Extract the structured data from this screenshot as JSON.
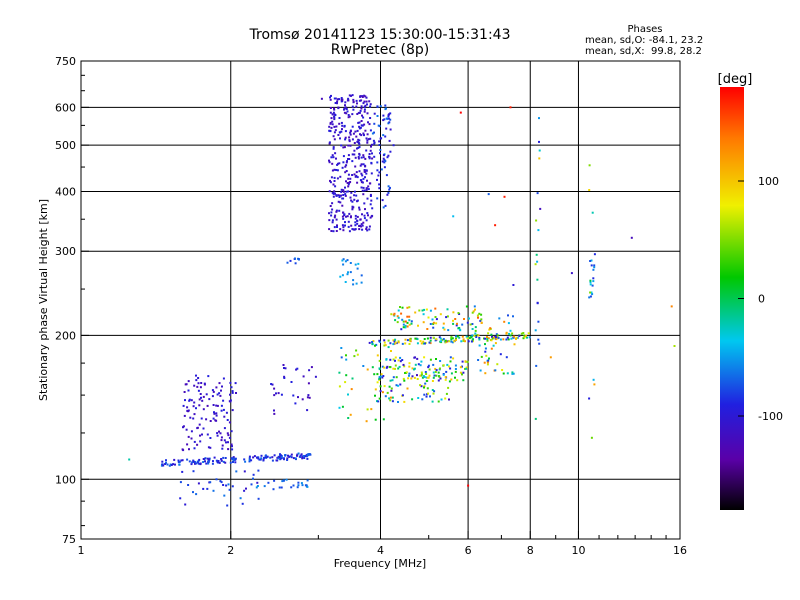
{
  "chart_data": {
    "type": "scatter",
    "title": "Tromsø 20141123 15:30:00-15:31:43",
    "subtitle": "RwPretec (8p)",
    "phases_box": {
      "heading": "Phases",
      "line1": "mean, sd,O: -84.1, 23.2",
      "line2": "mean, sd,X:  99.8, 28.2"
    },
    "xlabel": "Frequency [MHz]",
    "ylabel": "Stationary phase Virtual Height [km]",
    "x_scale": "log",
    "y_scale": "log",
    "xlim": [
      1,
      16
    ],
    "ylim": [
      75,
      750
    ],
    "x_ticks": [
      1,
      2,
      4,
      6,
      8,
      10,
      16
    ],
    "x_tick_labels": [
      "1",
      "2",
      "4",
      "6",
      "8",
      "10",
      "16"
    ],
    "y_ticks": [
      75,
      100,
      200,
      300,
      400,
      500,
      600,
      750
    ],
    "y_tick_labels": [
      "75",
      "100",
      "200",
      "300",
      "400",
      "500",
      "600",
      "750"
    ],
    "grid_x": [
      2,
      4,
      6,
      8,
      10
    ],
    "grid_y": [
      100,
      200,
      300,
      400,
      500,
      600
    ],
    "grid": true,
    "colorbar": {
      "label": "[deg]",
      "range": [
        -180,
        180
      ],
      "ticks": [
        100,
        0,
        -100
      ],
      "tick_labels": [
        "100",
        "0",
        "-100"
      ]
    },
    "clusters": [
      {
        "x": [
          1.45,
          2.9
        ],
        "y": [
          108,
          112
        ],
        "n": 170,
        "phase": [
          -110,
          -60
        ],
        "line": true
      },
      {
        "x": [
          1.6,
          2.05
        ],
        "y": [
          115,
          165
        ],
        "n": 130,
        "phase": [
          -125,
          -90
        ]
      },
      {
        "x": [
          1.55,
          2.3
        ],
        "y": [
          88,
          105
        ],
        "n": 35,
        "phase": [
          -110,
          -60
        ]
      },
      {
        "x": [
          2.2,
          2.9
        ],
        "y": [
          95,
          100
        ],
        "n": 25,
        "phase": [
          -80,
          -50
        ]
      },
      {
        "x": [
          2.4,
          3.0
        ],
        "y": [
          135,
          175
        ],
        "n": 30,
        "phase": [
          -125,
          -90
        ]
      },
      {
        "x": [
          3.15,
          3.85
        ],
        "y": [
          330,
          640
        ],
        "n": 420,
        "phase": [
          -125,
          -90
        ]
      },
      {
        "x": [
          3.85,
          4.2
        ],
        "y": [
          370,
          610
        ],
        "n": 70,
        "phase": [
          -110,
          -60
        ]
      },
      {
        "x": [
          3.3,
          3.7
        ],
        "y": [
          255,
          290
        ],
        "n": 20,
        "phase": [
          -70,
          -40
        ]
      },
      {
        "x": [
          2.6,
          2.75
        ],
        "y": [
          282,
          290
        ],
        "n": 8,
        "phase": [
          -90,
          -60
        ]
      },
      {
        "x": [
          3.8,
          8.0
        ],
        "y": [
          192,
          200
        ],
        "n": 150,
        "phase": [
          -110,
          130
        ],
        "line": true
      },
      {
        "x": [
          4.2,
          6.5
        ],
        "y": [
          205,
          230
        ],
        "n": 90,
        "phase": [
          -110,
          150
        ]
      },
      {
        "x": [
          3.9,
          6.0
        ],
        "y": [
          160,
          180
        ],
        "n": 120,
        "phase": [
          -120,
          110
        ]
      },
      {
        "x": [
          3.9,
          5.5
        ],
        "y": [
          145,
          165
        ],
        "n": 60,
        "phase": [
          -120,
          120
        ]
      },
      {
        "x": [
          6.2,
          7.5
        ],
        "y": [
          165,
          225
        ],
        "n": 50,
        "phase": [
          -90,
          140
        ]
      },
      {
        "x": [
          3.3,
          4.2
        ],
        "y": [
          130,
          190
        ],
        "n": 40,
        "phase": [
          -90,
          140
        ]
      },
      {
        "x": [
          8.2,
          8.4
        ],
        "y": [
          130,
          620
        ],
        "n": 20,
        "phase": [
          -120,
          100
        ]
      },
      {
        "x": [
          10.5,
          10.8
        ],
        "y": [
          240,
          290
        ],
        "n": 15,
        "phase": [
          -90,
          -30
        ]
      },
      {
        "x": [
          10.5,
          10.8
        ],
        "y": [
          115,
          620
        ],
        "n": 10,
        "phase": [
          -110,
          150
        ]
      }
    ],
    "scatter_extra": [
      {
        "x": 3.05,
        "y": 625,
        "phase": -120
      },
      {
        "x": 4.25,
        "y": 500,
        "phase": -95
      },
      {
        "x": 7.3,
        "y": 600,
        "phase": 170
      },
      {
        "x": 5.8,
        "y": 585,
        "phase": 180
      },
      {
        "x": 6.6,
        "y": 395,
        "phase": -70
      },
      {
        "x": 7.1,
        "y": 390,
        "phase": 170
      },
      {
        "x": 5.6,
        "y": 355,
        "phase": -40
      },
      {
        "x": 6.8,
        "y": 340,
        "phase": 170
      },
      {
        "x": 9.7,
        "y": 270,
        "phase": -110
      },
      {
        "x": 12.8,
        "y": 320,
        "phase": -120
      },
      {
        "x": 15.4,
        "y": 230,
        "phase": 130
      },
      {
        "x": 15.6,
        "y": 190,
        "phase": 60
      },
      {
        "x": 6.0,
        "y": 97,
        "phase": 180
      },
      {
        "x": 1.25,
        "y": 110,
        "phase": -20
      },
      {
        "x": 8.8,
        "y": 180,
        "phase": 120
      },
      {
        "x": 7.4,
        "y": 255,
        "phase": -100
      }
    ]
  }
}
